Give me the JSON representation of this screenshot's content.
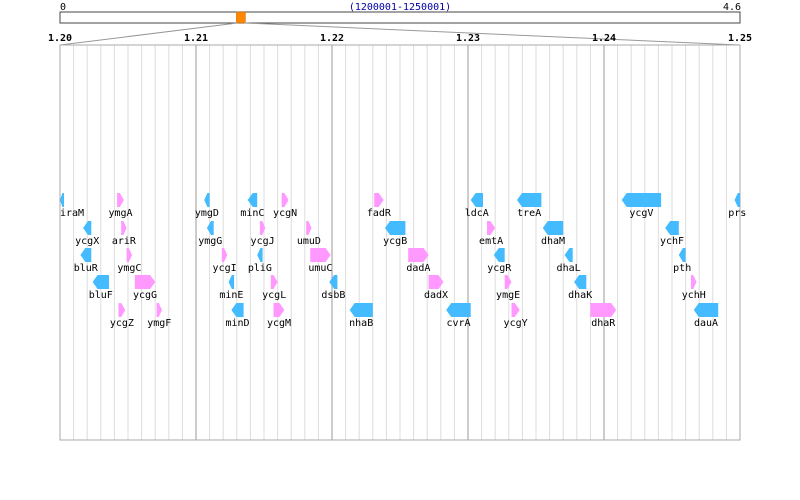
{
  "genome_overview": {
    "start_label": "0",
    "end_label": "4.6",
    "range_label": "(1200001-1250001)",
    "genome_max": 4.6,
    "window_start": 1.2,
    "window_end": 1.25
  },
  "axis": {
    "min": 1.2,
    "max": 1.25,
    "tick_labels": [
      "1.20",
      "1.21",
      "1.22",
      "1.23",
      "1.24",
      "1.25"
    ],
    "tick_values": [
      1.2,
      1.21,
      1.22,
      1.23,
      1.24,
      1.25
    ]
  },
  "colors": {
    "forward_gene": "#ff99ff",
    "reverse_gene": "#44bbff",
    "marker": "#ff8800",
    "grid_minor": "#dddddd",
    "grid_major": "#999999",
    "range_label": "#0000aa"
  },
  "genes": [
    {
      "name": "iraM",
      "strand": "-",
      "start": 1.1998,
      "end": 1.20015,
      "row": 0
    },
    {
      "name": "ymgA",
      "strand": "+",
      "start": 1.2042,
      "end": 1.2047,
      "row": 0
    },
    {
      "name": "ycgX",
      "strand": "-",
      "start": 1.2017,
      "end": 1.2023,
      "row": 1
    },
    {
      "name": "ariR",
      "strand": "+",
      "start": 1.2045,
      "end": 1.2049,
      "row": 1
    },
    {
      "name": "bluR",
      "strand": "-",
      "start": 1.2015,
      "end": 1.2023,
      "row": 2
    },
    {
      "name": "ymgC",
      "strand": "+",
      "start": 1.2049,
      "end": 1.2053,
      "row": 2
    },
    {
      "name": "bluF",
      "strand": "-",
      "start": 1.2024,
      "end": 1.2036,
      "row": 3
    },
    {
      "name": "ycgG",
      "strand": "+",
      "start": 1.2055,
      "end": 1.207,
      "row": 3
    },
    {
      "name": "ycgZ",
      "strand": "+",
      "start": 1.2043,
      "end": 1.2048,
      "row": 4
    },
    {
      "name": "ymgF",
      "strand": "+",
      "start": 1.2071,
      "end": 1.2075,
      "row": 4
    },
    {
      "name": "ymgD",
      "strand": "-",
      "start": 1.2106,
      "end": 1.211,
      "row": 0
    },
    {
      "name": "minC",
      "strand": "-",
      "start": 1.2138,
      "end": 1.2145,
      "row": 0
    },
    {
      "name": "ycgN",
      "strand": "+",
      "start": 1.2163,
      "end": 1.2168,
      "row": 0
    },
    {
      "name": "ymgG",
      "strand": "-",
      "start": 1.2108,
      "end": 1.2113,
      "row": 1
    },
    {
      "name": "ycgJ",
      "strand": "+",
      "start": 1.2147,
      "end": 1.2151,
      "row": 1
    },
    {
      "name": "umuD",
      "strand": "+",
      "start": 1.2181,
      "end": 1.2185,
      "row": 1
    },
    {
      "name": "ycgI",
      "strand": "+",
      "start": 1.2119,
      "end": 1.2123,
      "row": 2
    },
    {
      "name": "pliG",
      "strand": "-",
      "start": 1.2145,
      "end": 1.2149,
      "row": 2
    },
    {
      "name": "umuC",
      "strand": "+",
      "start": 1.2184,
      "end": 1.2199,
      "row": 2
    },
    {
      "name": "minE",
      "strand": "-",
      "start": 1.2124,
      "end": 1.2128,
      "row": 3
    },
    {
      "name": "ycgL",
      "strand": "+",
      "start": 1.2155,
      "end": 1.216,
      "row": 3
    },
    {
      "name": "dsbB",
      "strand": "-",
      "start": 1.2198,
      "end": 1.2204,
      "row": 3
    },
    {
      "name": "minD",
      "strand": "-",
      "start": 1.2126,
      "end": 1.2135,
      "row": 4
    },
    {
      "name": "ycgM",
      "strand": "+",
      "start": 1.2157,
      "end": 1.2165,
      "row": 4
    },
    {
      "name": "nhaB",
      "strand": "-",
      "start": 1.2213,
      "end": 1.223,
      "row": 4
    },
    {
      "name": "fadR",
      "strand": "+",
      "start": 1.2231,
      "end": 1.2238,
      "row": 0
    },
    {
      "name": "ycgB",
      "strand": "-",
      "start": 1.2239,
      "end": 1.2254,
      "row": 1
    },
    {
      "name": "dadA",
      "strand": "+",
      "start": 1.2256,
      "end": 1.2271,
      "row": 2
    },
    {
      "name": "dadX",
      "strand": "+",
      "start": 1.2271,
      "end": 1.2282,
      "row": 3
    },
    {
      "name": "cvrA",
      "strand": "-",
      "start": 1.2284,
      "end": 1.2302,
      "row": 4
    },
    {
      "name": "ldcA",
      "strand": "-",
      "start": 1.2302,
      "end": 1.2311,
      "row": 0
    },
    {
      "name": "treA",
      "strand": "-",
      "start": 1.2336,
      "end": 1.2354,
      "row": 0
    },
    {
      "name": "emtA",
      "strand": "+",
      "start": 1.2314,
      "end": 1.232,
      "row": 1
    },
    {
      "name": "dhaM",
      "strand": "-",
      "start": 1.2355,
      "end": 1.237,
      "row": 1
    },
    {
      "name": "ycgR",
      "strand": "-",
      "start": 1.2319,
      "end": 1.2327,
      "row": 2
    },
    {
      "name": "dhaL",
      "strand": "-",
      "start": 1.2371,
      "end": 1.2377,
      "row": 2
    },
    {
      "name": "ymgE",
      "strand": "+",
      "start": 1.2327,
      "end": 1.2332,
      "row": 3
    },
    {
      "name": "dhaK",
      "strand": "-",
      "start": 1.2378,
      "end": 1.2387,
      "row": 3
    },
    {
      "name": "ycgY",
      "strand": "+",
      "start": 1.2332,
      "end": 1.2338,
      "row": 4
    },
    {
      "name": "dhaR",
      "strand": "+",
      "start": 1.239,
      "end": 1.2409,
      "row": 4
    },
    {
      "name": "ycgV",
      "strand": "-",
      "start": 1.2413,
      "end": 1.2442,
      "row": 0
    },
    {
      "name": "prs",
      "strand": "-",
      "start": 1.2496,
      "end": 1.2505,
      "row": 0
    },
    {
      "name": "ychF",
      "strand": "-",
      "start": 1.2445,
      "end": 1.2455,
      "row": 1
    },
    {
      "name": "pth",
      "strand": "-",
      "start": 1.2455,
      "end": 1.246,
      "row": 2
    },
    {
      "name": "ychH",
      "strand": "+",
      "start": 1.2464,
      "end": 1.2468,
      "row": 3
    },
    {
      "name": "dauA",
      "strand": "-",
      "start": 1.2466,
      "end": 1.2484,
      "row": 4
    }
  ]
}
